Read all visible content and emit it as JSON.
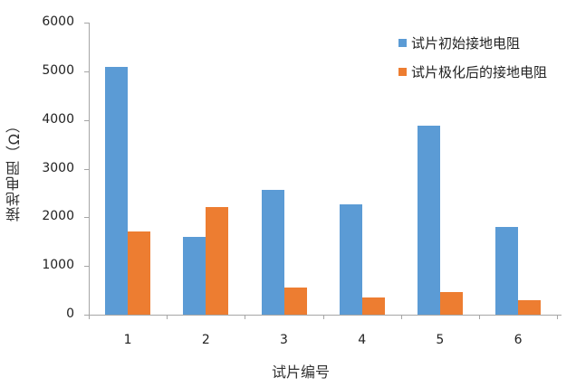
{
  "chart_data": {
    "type": "bar",
    "title": "",
    "xlabel": "试片编号",
    "ylabel": "接地电阻（Ω）",
    "categories": [
      "1",
      "2",
      "3",
      "4",
      "5",
      "6"
    ],
    "series": [
      {
        "name": "试片初始接地电阻",
        "color": "#5b9bd5",
        "values": [
          5090,
          1600,
          2560,
          2260,
          3890,
          1800
        ]
      },
      {
        "name": "试片极化后的接地电阻",
        "color": "#ed7d31",
        "values": [
          1715,
          2210,
          550,
          355,
          460,
          300
        ]
      }
    ],
    "ylim": [
      0,
      6000
    ],
    "yticks": [
      "0",
      "1000",
      "2000",
      "3000",
      "4000",
      "5000",
      "6000"
    ],
    "grid": false,
    "legend_position": "top-right"
  }
}
